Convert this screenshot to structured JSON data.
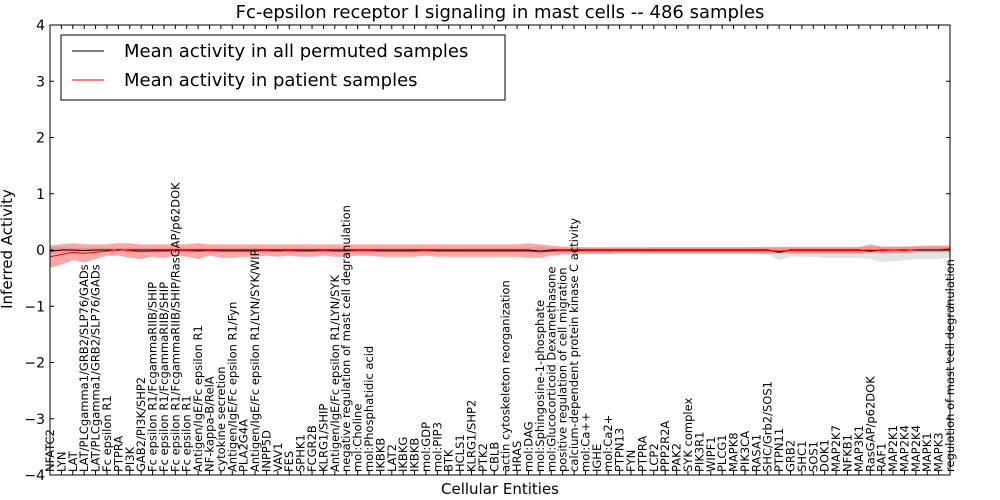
{
  "chart_data": {
    "type": "line",
    "title": "Fc-epsilon receptor I signaling in mast cells -- 486 samples",
    "xlabel": "Cellular Entities",
    "ylabel": "Inferred Activity",
    "ylim": [
      -4,
      4
    ],
    "yticks": [
      "−4",
      "−3",
      "−2",
      "−1",
      "0",
      "1",
      "2",
      "3",
      "4"
    ],
    "legend_position": "top-left",
    "categories": [
      "NFATC2",
      "LYN",
      "LAT",
      "LAT/PLCgamma1/GRB2/SLP76/GADs",
      "LAT/PLCgamma1/GRB2/SLP76/GADs",
      "Fc epsilon R1",
      "PTPRA",
      "PI3K",
      "GAB2/PI3K/SHP2",
      "Fc epsilon R1/FcgammaRIIB/SHIP",
      "Fc epsilon R1/FcgammaRIIB/SHIP",
      "Fc epsilon R1/FcgammaRIIB/SHIP/RasGAP/p62DOK",
      "Fc epsilon R1",
      "Antigen/IgE/Fc epsilon R1",
      "NF-kappa-B/RelA",
      "cytokine secretion",
      "Antigen/IgE/Fc epsilon R1/Fyn",
      "PLA2G4A",
      "Antigen/IgE/Fc epsilon R1/LYN/SYK/WIP",
      "INPP5D",
      "VAV1",
      "FES",
      "SPHK1",
      "FCGR2B",
      "KLRG1/SHIP",
      "Antigen/IgE/Fc epsilon R1/LYN/SYK",
      "negative regulation of mast cell degranulation",
      "mol:Choline",
      "mol:Phosphatidic acid",
      "IKBKB",
      "LAT2",
      "IKBKG",
      "IKBKB",
      "mol:GDP",
      "mol:PIP3",
      "BTK",
      "HCLS1",
      "KLRG1/SHP2",
      "PTK2",
      "CBLB",
      "actin cytoskeleton reorganization",
      "HRAS",
      "mol:DAG",
      "mol:Sphingosine-1-phosphate",
      "mol:Glucocorticoid Dexamethasone",
      "positive regulation of cell migration",
      "calcium-dependent protein kinase C activity",
      "mol:Ca++",
      "IGHE",
      "mol:Ca2+",
      "PTPN13",
      "FYN",
      "PTPRA",
      "LCP2",
      "PPP2R2A",
      "PAK2",
      "SYK complex",
      "PIK3R1",
      "WIPF1",
      "PLCG1",
      "MAPK8",
      "PIK3CA",
      "RASA1",
      "SHC/Grb2/SOS1",
      "PTPN11",
      "GRB2",
      "SHC1",
      "SOS1",
      "DOK1",
      "MAP2K7",
      "NFKB1",
      "MAP3K1",
      "RasGAP/p62DOK",
      "RAF1",
      "MAP2K1",
      "MAP2K4",
      "MAP2K4",
      "MAPK1",
      "MAPK3",
      "regulation of mast cell degranulation"
    ],
    "series": [
      {
        "name": "Mean activity in all permuted samples",
        "color": "#000000",
        "values": [
          -0.02,
          0,
          0,
          -0.01,
          0,
          0,
          0,
          0,
          0,
          0,
          0,
          0,
          0,
          0,
          0,
          0,
          0,
          0,
          0,
          0,
          0,
          0,
          0,
          0,
          0,
          0,
          0,
          0,
          0,
          0,
          0,
          0,
          0,
          0,
          0,
          0,
          0,
          0,
          0,
          0,
          0,
          0,
          0,
          -0.02,
          0,
          0,
          0,
          0,
          0,
          0,
          0,
          0,
          0,
          0,
          0,
          0,
          0,
          0,
          0,
          0,
          0,
          0,
          0,
          0,
          -0.04,
          0,
          0,
          0,
          0,
          0,
          0,
          0,
          -0.02,
          0,
          0,
          0,
          0,
          0,
          0,
          0
        ],
        "band_low": [
          -0.06,
          -0.05,
          -0.04,
          -0.04,
          -0.04,
          -0.04,
          -0.04,
          -0.04,
          -0.04,
          -0.04,
          -0.04,
          -0.04,
          -0.04,
          -0.04,
          -0.04,
          -0.04,
          -0.04,
          -0.04,
          -0.04,
          -0.04,
          -0.04,
          -0.04,
          -0.04,
          -0.04,
          -0.04,
          -0.04,
          -0.04,
          -0.04,
          -0.04,
          -0.04,
          -0.04,
          -0.04,
          -0.04,
          -0.04,
          -0.04,
          -0.04,
          -0.04,
          -0.04,
          -0.04,
          -0.04,
          -0.04,
          -0.04,
          -0.04,
          -0.06,
          -0.04,
          -0.04,
          -0.04,
          -0.04,
          -0.04,
          -0.04,
          -0.04,
          -0.04,
          -0.04,
          -0.05,
          -0.05,
          -0.05,
          -0.05,
          -0.05,
          -0.05,
          -0.05,
          -0.05,
          -0.05,
          -0.06,
          -0.08,
          -0.18,
          -0.12,
          -0.12,
          -0.12,
          -0.14,
          -0.14,
          -0.14,
          -0.14,
          -0.16,
          -0.22,
          -0.2,
          -0.18,
          -0.16,
          -0.16,
          -0.16,
          -0.14
        ],
        "band_high": [
          0.06,
          0.05,
          0.04,
          0.04,
          0.04,
          0.04,
          0.04,
          0.04,
          0.04,
          0.04,
          0.04,
          0.04,
          0.04,
          0.04,
          0.04,
          0.04,
          0.04,
          0.04,
          0.04,
          0.04,
          0.04,
          0.04,
          0.04,
          0.04,
          0.04,
          0.04,
          0.04,
          0.04,
          0.04,
          0.04,
          0.04,
          0.04,
          0.04,
          0.04,
          0.04,
          0.04,
          0.04,
          0.04,
          0.04,
          0.04,
          0.04,
          0.04,
          0.04,
          0.06,
          0.04,
          0.04,
          0.04,
          0.04,
          0.04,
          0.04,
          0.04,
          0.04,
          0.04,
          0.05,
          0.05,
          0.05,
          0.05,
          0.05,
          0.05,
          0.05,
          0.05,
          0.05,
          0.06,
          0.06,
          0.06,
          0.06,
          0.06,
          0.06,
          0.06,
          0.06,
          0.06,
          0.06,
          0.06,
          0.06,
          0.06,
          0.06,
          0.06,
          0.06,
          0.06,
          0.06
        ]
      },
      {
        "name": "Mean activity in patient samples",
        "color": "#ff0000",
        "values": [
          -0.12,
          -0.08,
          -0.04,
          -0.06,
          -0.04,
          -0.02,
          0.01,
          -0.01,
          -0.03,
          -0.02,
          -0.02,
          -0.01,
          -0.01,
          -0.02,
          -0.01,
          -0.02,
          -0.02,
          -0.02,
          -0.02,
          -0.01,
          -0.02,
          -0.01,
          -0.02,
          -0.02,
          -0.01,
          -0.02,
          -0.02,
          -0.01,
          -0.01,
          -0.02,
          -0.02,
          -0.02,
          -0.02,
          -0.01,
          -0.02,
          -0.02,
          -0.02,
          -0.02,
          -0.02,
          -0.02,
          -0.02,
          -0.02,
          -0.02,
          -0.03,
          -0.02,
          -0.01,
          -0.02,
          -0.01,
          -0.01,
          -0.01,
          -0.01,
          -0.01,
          -0.01,
          -0.01,
          -0.01,
          -0.01,
          -0.01,
          -0.01,
          -0.01,
          -0.01,
          -0.01,
          -0.01,
          -0.01,
          -0.01,
          -0.02,
          -0.01,
          -0.01,
          -0.01,
          -0.01,
          -0.01,
          -0.01,
          -0.01,
          0,
          -0.01,
          0,
          -0.01,
          0.01,
          0.01,
          0.01,
          0.02
        ],
        "band_low": [
          -0.32,
          -0.26,
          -0.18,
          -0.22,
          -0.16,
          -0.1,
          -0.1,
          -0.14,
          -0.16,
          -0.12,
          -0.14,
          -0.1,
          -0.12,
          -0.16,
          -0.1,
          -0.14,
          -0.14,
          -0.12,
          -0.12,
          -0.1,
          -0.12,
          -0.1,
          -0.12,
          -0.12,
          -0.1,
          -0.12,
          -0.12,
          -0.1,
          -0.1,
          -0.12,
          -0.12,
          -0.12,
          -0.12,
          -0.1,
          -0.12,
          -0.12,
          -0.12,
          -0.12,
          -0.12,
          -0.12,
          -0.12,
          -0.12,
          -0.14,
          -0.14,
          -0.1,
          -0.08,
          -0.08,
          -0.07,
          -0.07,
          -0.07,
          -0.06,
          -0.06,
          -0.06,
          -0.06,
          -0.06,
          -0.06,
          -0.06,
          -0.06,
          -0.06,
          -0.06,
          -0.06,
          -0.06,
          -0.06,
          -0.06,
          -0.06,
          -0.06,
          -0.06,
          -0.06,
          -0.06,
          -0.06,
          -0.06,
          -0.06,
          -0.05,
          -0.05,
          -0.05,
          -0.05,
          -0.04,
          -0.04,
          -0.04,
          -0.04
        ],
        "band_high": [
          0.08,
          0.1,
          0.12,
          0.1,
          0.1,
          0.1,
          0.12,
          0.12,
          0.1,
          0.1,
          0.1,
          0.1,
          0.1,
          0.12,
          0.1,
          0.1,
          0.1,
          0.1,
          0.1,
          0.1,
          0.1,
          0.1,
          0.1,
          0.1,
          0.1,
          0.1,
          0.1,
          0.1,
          0.1,
          0.1,
          0.1,
          0.1,
          0.1,
          0.1,
          0.1,
          0.1,
          0.1,
          0.1,
          0.1,
          0.1,
          0.1,
          0.1,
          0.12,
          0.1,
          0.08,
          0.06,
          0.06,
          0.05,
          0.05,
          0.05,
          0.05,
          0.05,
          0.05,
          0.05,
          0.05,
          0.05,
          0.05,
          0.05,
          0.05,
          0.05,
          0.05,
          0.05,
          0.05,
          0.05,
          0.05,
          0.05,
          0.05,
          0.05,
          0.05,
          0.05,
          0.05,
          0.05,
          0.1,
          0.06,
          0.06,
          0.06,
          0.07,
          0.08,
          0.08,
          0.08
        ]
      }
    ]
  }
}
